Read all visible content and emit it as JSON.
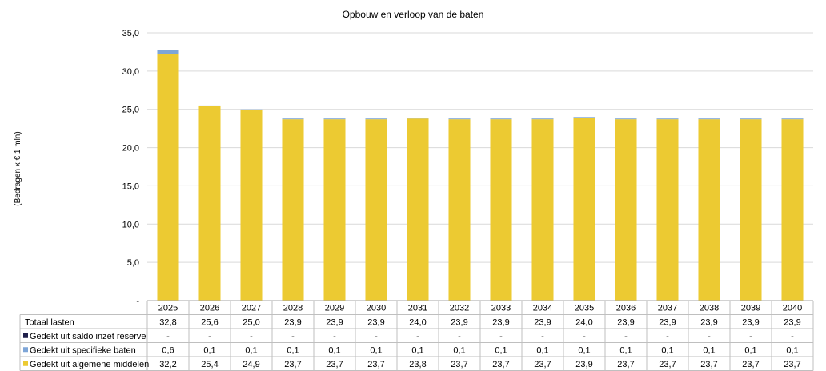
{
  "chart_data": {
    "type": "bar",
    "stacked": true,
    "title": "Opbouw  en verloop  van  de baten",
    "ylabel": "(Bedragen x € 1 mln)",
    "xlabel": "",
    "ylim": [
      0,
      35
    ],
    "yticks": [
      "-",
      "5,0",
      "10,0",
      "15,0",
      "20,0",
      "25,0",
      "30,0",
      "35,0"
    ],
    "grid": true,
    "legend": "data-table",
    "categories": [
      "2025",
      "2026",
      "2027",
      "2028",
      "2029",
      "2030",
      "2031",
      "2032",
      "2033",
      "2034",
      "2035",
      "2036",
      "2037",
      "2038",
      "2039",
      "2040"
    ],
    "series": [
      {
        "name": "Gedekt uit algemene middelen",
        "color": "#ECCA32",
        "values": [
          32.2,
          25.4,
          24.9,
          23.7,
          23.7,
          23.7,
          23.8,
          23.7,
          23.7,
          23.7,
          23.9,
          23.7,
          23.7,
          23.7,
          23.7,
          23.7
        ],
        "labels": [
          "32,2",
          "25,4",
          "24,9",
          "23,7",
          "23,7",
          "23,7",
          "23,8",
          "23,7",
          "23,7",
          "23,7",
          "23,9",
          "23,7",
          "23,7",
          "23,7",
          "23,7",
          "23,7"
        ]
      },
      {
        "name": "Gedekt uit specifieke baten",
        "color": "#7EA6D8",
        "values": [
          0.6,
          0.1,
          0.1,
          0.1,
          0.1,
          0.1,
          0.1,
          0.1,
          0.1,
          0.1,
          0.1,
          0.1,
          0.1,
          0.1,
          0.1,
          0.1
        ],
        "labels": [
          "0,6",
          "0,1",
          "0,1",
          "0,1",
          "0,1",
          "0,1",
          "0,1",
          "0,1",
          "0,1",
          "0,1",
          "0,1",
          "0,1",
          "0,1",
          "0,1",
          "0,1",
          "0,1"
        ]
      },
      {
        "name": "Gedekt uit saldo inzet reserve",
        "color": "#1F1F4A",
        "values": [
          0,
          0,
          0,
          0,
          0,
          0,
          0,
          0,
          0,
          0,
          0,
          0,
          0,
          0,
          0,
          0
        ],
        "labels": [
          "-",
          "-",
          "-",
          "-",
          "-",
          "-",
          "-",
          "-",
          "-",
          "-",
          "-",
          "-",
          "-",
          "-",
          "-",
          "-"
        ]
      }
    ],
    "totals": {
      "name": "Totaal lasten",
      "labels": [
        "32,8",
        "25,6",
        "25,0",
        "23,9",
        "23,9",
        "23,9",
        "24,0",
        "23,9",
        "23,9",
        "23,9",
        "24,0",
        "23,9",
        "23,9",
        "23,9",
        "23,9",
        "23,9"
      ]
    }
  }
}
